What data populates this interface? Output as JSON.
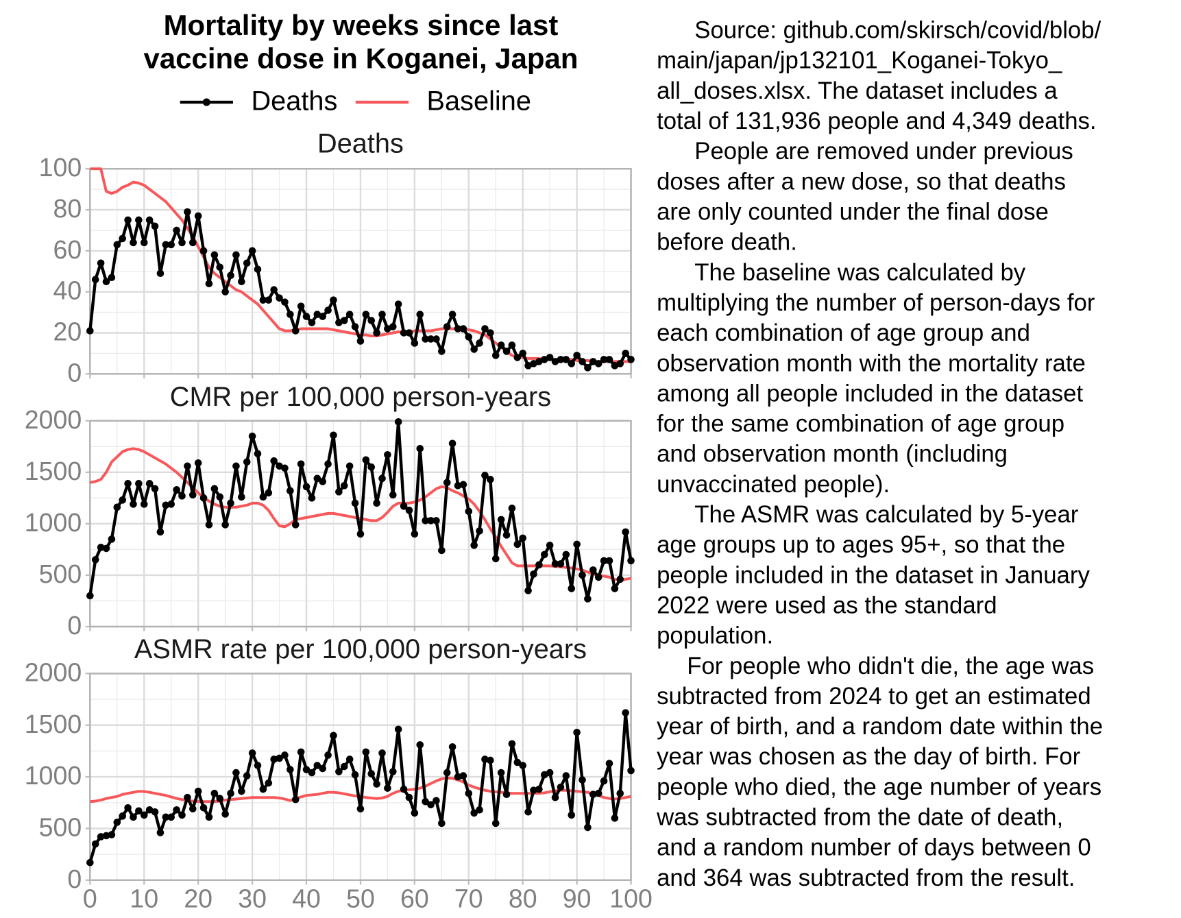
{
  "title": [
    "Mortality by weeks since last",
    "vaccine dose in Koganei, Japan"
  ],
  "chart_data": [
    {
      "type": "line",
      "title": "Deaths",
      "legend": "top",
      "grid": true,
      "xtick_labels": false,
      "xlim": [
        0,
        100
      ],
      "xticks": [
        0,
        10,
        20,
        30,
        40,
        50,
        60,
        70,
        80,
        90,
        100
      ],
      "ylim": [
        0,
        100
      ],
      "yticks": [
        0,
        20,
        40,
        60,
        80,
        100
      ],
      "x": [
        0,
        1,
        2,
        3,
        4,
        5,
        6,
        7,
        8,
        9,
        10,
        11,
        12,
        13,
        14,
        15,
        16,
        17,
        18,
        19,
        20,
        21,
        22,
        23,
        24,
        25,
        26,
        27,
        28,
        29,
        30,
        31,
        32,
        33,
        34,
        35,
        36,
        37,
        38,
        39,
        40,
        41,
        42,
        43,
        44,
        45,
        46,
        47,
        48,
        49,
        50,
        51,
        52,
        53,
        54,
        55,
        56,
        57,
        58,
        59,
        60,
        61,
        62,
        63,
        64,
        65,
        66,
        67,
        68,
        69,
        70,
        71,
        72,
        73,
        74,
        75,
        76,
        77,
        78,
        79,
        80,
        81,
        82,
        83,
        84,
        85,
        86,
        87,
        88,
        89,
        90,
        91,
        92,
        93,
        94,
        95,
        96,
        97,
        98,
        99,
        100
      ],
      "series": [
        {
          "name": "Deaths",
          "color": "#000000",
          "markers": true,
          "values": [
            21,
            46,
            54,
            45,
            47,
            63,
            66,
            75,
            64,
            75,
            64,
            75,
            72,
            49,
            63,
            63,
            70,
            64,
            79,
            64,
            77,
            60,
            44,
            58,
            52,
            40,
            48,
            58,
            45,
            54,
            60,
            51,
            36,
            36,
            41,
            37,
            35,
            29,
            21,
            33,
            28,
            25,
            29,
            28,
            31,
            36,
            25,
            26,
            29,
            23,
            16,
            29,
            26,
            20,
            29,
            22,
            23,
            34,
            20,
            20,
            15,
            29,
            17,
            17,
            17,
            11,
            23,
            29,
            22,
            22,
            18,
            12,
            15,
            22,
            20,
            9,
            14,
            11,
            14,
            8,
            10,
            4,
            5,
            6,
            7,
            8,
            6,
            7,
            7,
            5,
            9,
            6,
            3,
            6,
            5,
            7,
            7,
            4,
            5,
            10,
            7
          ]
        },
        {
          "name": "Baseline",
          "color": "#f8585a",
          "markers": false,
          "values": [
            100,
            100,
            100,
            89,
            88,
            89,
            91,
            92,
            93.5,
            93,
            92,
            90,
            88,
            86,
            84,
            81,
            78,
            75,
            71,
            67,
            62,
            57,
            52,
            49,
            47,
            45,
            43,
            41,
            40,
            38,
            36,
            34,
            31,
            28,
            25,
            22,
            21,
            21,
            21.5,
            22,
            22,
            22,
            22,
            22,
            22,
            21.5,
            21,
            20.5,
            20,
            19.5,
            19,
            19,
            18.5,
            18.5,
            19,
            19.5,
            20,
            20.5,
            20.5,
            20.5,
            21,
            21,
            21,
            21,
            21.5,
            22,
            22,
            22,
            22,
            22,
            21.5,
            21,
            20,
            19,
            17,
            15,
            13,
            11,
            9,
            8,
            8,
            7.5,
            7.5,
            7.5,
            7,
            7,
            7,
            7,
            7,
            7,
            6.5,
            6.5,
            6.5,
            6,
            6,
            6,
            6,
            6,
            6,
            6,
            6
          ]
        }
      ]
    },
    {
      "type": "line",
      "title": "CMR per 100,000 person-years",
      "grid": true,
      "xtick_labels": false,
      "xlim": [
        0,
        100
      ],
      "xticks": [
        0,
        10,
        20,
        30,
        40,
        50,
        60,
        70,
        80,
        90,
        100
      ],
      "ylim": [
        0,
        2000
      ],
      "yticks": [
        0,
        500,
        1000,
        1500,
        2000
      ],
      "x": [
        0,
        1,
        2,
        3,
        4,
        5,
        6,
        7,
        8,
        9,
        10,
        11,
        12,
        13,
        14,
        15,
        16,
        17,
        18,
        19,
        20,
        21,
        22,
        23,
        24,
        25,
        26,
        27,
        28,
        29,
        30,
        31,
        32,
        33,
        34,
        35,
        36,
        37,
        38,
        39,
        40,
        41,
        42,
        43,
        44,
        45,
        46,
        47,
        48,
        49,
        50,
        51,
        52,
        53,
        54,
        55,
        56,
        57,
        58,
        59,
        60,
        61,
        62,
        63,
        64,
        65,
        66,
        67,
        68,
        69,
        70,
        71,
        72,
        73,
        74,
        75,
        76,
        77,
        78,
        79,
        80,
        81,
        82,
        83,
        84,
        85,
        86,
        87,
        88,
        89,
        90,
        91,
        92,
        93,
        94,
        95,
        96,
        97,
        98,
        99,
        100
      ],
      "series": [
        {
          "color": "#000000",
          "markers": true,
          "values": [
            300,
            650,
            770,
            760,
            850,
            1160,
            1230,
            1390,
            1190,
            1390,
            1190,
            1390,
            1340,
            920,
            1180,
            1190,
            1330,
            1270,
            1560,
            1280,
            1590,
            1250,
            990,
            1340,
            1260,
            990,
            1200,
            1560,
            1260,
            1600,
            1850,
            1680,
            1260,
            1300,
            1610,
            1560,
            1540,
            1320,
            990,
            1580,
            1360,
            1250,
            1440,
            1410,
            1580,
            1860,
            1310,
            1370,
            1560,
            1200,
            900,
            1620,
            1550,
            1200,
            1440,
            1670,
            1280,
            1990,
            1170,
            1130,
            900,
            1730,
            1030,
            1030,
            1030,
            740,
            1400,
            1780,
            1370,
            1380,
            1120,
            790,
            930,
            1470,
            1430,
            660,
            1040,
            890,
            1150,
            800,
            860,
            350,
            510,
            600,
            700,
            790,
            610,
            610,
            700,
            370,
            800,
            500,
            270,
            550,
            480,
            640,
            640,
            370,
            460,
            920,
            640
          ]
        },
        {
          "color": "#f8585a",
          "markers": false,
          "values": [
            1400,
            1410,
            1430,
            1500,
            1600,
            1650,
            1700,
            1720,
            1730,
            1720,
            1700,
            1670,
            1640,
            1610,
            1580,
            1540,
            1500,
            1450,
            1400,
            1350,
            1300,
            1250,
            1220,
            1190,
            1170,
            1160,
            1160,
            1160,
            1170,
            1180,
            1200,
            1200,
            1180,
            1130,
            1050,
            980,
            970,
            1000,
            1040,
            1050,
            1060,
            1070,
            1080,
            1090,
            1100,
            1100,
            1090,
            1080,
            1070,
            1060,
            1050,
            1040,
            1030,
            1030,
            1060,
            1110,
            1170,
            1200,
            1200,
            1200,
            1210,
            1230,
            1260,
            1300,
            1340,
            1360,
            1350,
            1320,
            1300,
            1270,
            1240,
            1190,
            1120,
            1040,
            950,
            870,
            780,
            700,
            620,
            590,
            590,
            590,
            590,
            590,
            590,
            590,
            585,
            580,
            575,
            570,
            560,
            550,
            530,
            510,
            500,
            490,
            480,
            460,
            450,
            460,
            470
          ]
        }
      ]
    },
    {
      "type": "line",
      "title": "ASMR rate per 100,000 person-years",
      "grid": true,
      "xtick_labels": true,
      "xlim": [
        0,
        100
      ],
      "xticks": [
        0,
        10,
        20,
        30,
        40,
        50,
        60,
        70,
        80,
        90,
        100
      ],
      "ylim": [
        0,
        2000
      ],
      "yticks": [
        0,
        500,
        1000,
        1500,
        2000
      ],
      "x": [
        0,
        1,
        2,
        3,
        4,
        5,
        6,
        7,
        8,
        9,
        10,
        11,
        12,
        13,
        14,
        15,
        16,
        17,
        18,
        19,
        20,
        21,
        22,
        23,
        24,
        25,
        26,
        27,
        28,
        29,
        30,
        31,
        32,
        33,
        34,
        35,
        36,
        37,
        38,
        39,
        40,
        41,
        42,
        43,
        44,
        45,
        46,
        47,
        48,
        49,
        50,
        51,
        52,
        53,
        54,
        55,
        56,
        57,
        58,
        59,
        60,
        61,
        62,
        63,
        64,
        65,
        66,
        67,
        68,
        69,
        70,
        71,
        72,
        73,
        74,
        75,
        76,
        77,
        78,
        79,
        80,
        81,
        82,
        83,
        84,
        85,
        86,
        87,
        88,
        89,
        90,
        91,
        92,
        93,
        94,
        95,
        96,
        97,
        98,
        99,
        100
      ],
      "series": [
        {
          "color": "#000000",
          "markers": true,
          "values": [
            170,
            350,
            420,
            430,
            440,
            560,
            620,
            700,
            610,
            670,
            630,
            680,
            660,
            460,
            610,
            610,
            680,
            630,
            800,
            690,
            860,
            700,
            610,
            840,
            790,
            640,
            840,
            1040,
            860,
            1010,
            1230,
            1110,
            880,
            940,
            1170,
            1180,
            1210,
            1070,
            780,
            1240,
            1070,
            1040,
            1110,
            1080,
            1210,
            1400,
            1050,
            1100,
            1170,
            1020,
            690,
            1240,
            1030,
            930,
            1230,
            890,
            1050,
            1460,
            880,
            800,
            650,
            1310,
            760,
            730,
            770,
            550,
            1040,
            1290,
            1000,
            1010,
            840,
            650,
            680,
            1170,
            1160,
            550,
            1040,
            830,
            1320,
            1140,
            1110,
            660,
            870,
            880,
            1020,
            1040,
            800,
            900,
            1010,
            630,
            1430,
            970,
            510,
            830,
            840,
            960,
            1130,
            600,
            840,
            1620,
            1060
          ]
        },
        {
          "color": "#f8585a",
          "markers": false,
          "values": [
            760,
            765,
            775,
            790,
            800,
            810,
            830,
            840,
            850,
            860,
            858,
            850,
            840,
            830,
            820,
            805,
            790,
            780,
            770,
            765,
            760,
            760,
            760,
            760,
            765,
            775,
            780,
            785,
            790,
            795,
            800,
            800,
            800,
            800,
            800,
            795,
            785,
            770,
            790,
            805,
            820,
            825,
            830,
            840,
            850,
            850,
            845,
            835,
            825,
            815,
            810,
            800,
            795,
            790,
            795,
            810,
            840,
            860,
            870,
            875,
            880,
            890,
            910,
            935,
            960,
            980,
            990,
            985,
            970,
            950,
            920,
            900,
            885,
            870,
            860,
            855,
            850,
            845,
            840,
            840,
            840,
            840,
            840,
            840,
            845,
            855,
            865,
            870,
            870,
            865,
            860,
            855,
            850,
            835,
            820,
            800,
            790,
            785,
            790,
            800,
            810
          ]
        }
      ]
    }
  ],
  "notes": [
    [
      "Source: github.com/skirsch/covid/blob/",
      "main/japan/jp132101_Koganei-Tokyo_",
      "all_doses.xlsx. The dataset includes a",
      "total of 131,936 people and 4,349 deaths."
    ],
    [
      "People are removed under previous",
      "doses after a new dose, so that deaths",
      "are only counted under the final dose",
      "before death."
    ],
    [
      "The baseline was calculated by",
      "multiplying the number of person-days for",
      "each combination of age group and",
      "observation month with the mortality rate",
      "among all people included in the dataset",
      "for the same combination of age group",
      "and observation month (including",
      "unvaccinated people)."
    ],
    [
      "The ASMR was calculated by 5-year",
      "age groups up to ages 95+, so that the",
      "people included in the dataset in January",
      "2022 were used as the standard",
      "population."
    ],
    [
      "For people who didn't die, the age was",
      "subtracted from 2024 to get an estimated",
      "year of birth, and a random date within the",
      "year was chosen as the day of birth. For",
      "people who died, the age number of years",
      "was subtracted from the date of death,",
      "and a random number of days between 0",
      "and 364 was subtracted from the result."
    ]
  ]
}
